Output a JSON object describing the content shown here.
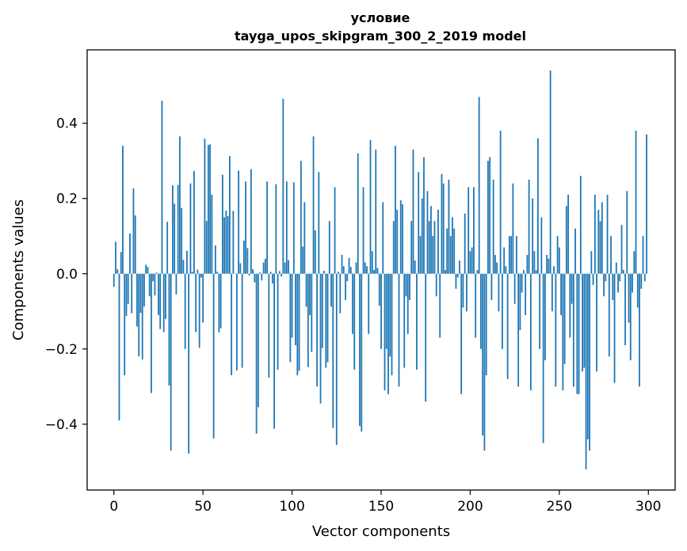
{
  "chart_data": {
    "type": "bar",
    "title": "условие",
    "subtitle": "tayga_upos_skipgram_300_2_2019 model",
    "xlabel": "Vector components",
    "ylabel": "Components values",
    "xlim": [
      -15,
      315
    ],
    "ylim": [
      -0.575,
      0.595
    ],
    "xticks": [
      0,
      50,
      100,
      150,
      200,
      250,
      300
    ],
    "xtick_labels": [
      "0",
      "50",
      "100",
      "150",
      "200",
      "250",
      "300"
    ],
    "yticks": [
      -0.4,
      -0.2,
      0.0,
      0.2,
      0.4
    ],
    "ytick_labels": [
      "−0.4",
      "−0.2",
      "0.0",
      "0.2",
      "0.4"
    ],
    "grid": false,
    "legend": "none",
    "bar_color": "#1f77b4",
    "values": [
      -0.035,
      0.085,
      0.012,
      -0.39,
      0.058,
      0.34,
      -0.27,
      -0.112,
      -0.08,
      0.107,
      -0.105,
      0.227,
      0.155,
      -0.14,
      -0.22,
      -0.104,
      -0.228,
      -0.087,
      0.024,
      0.018,
      -0.06,
      -0.317,
      -0.02,
      -0.058,
      0.003,
      -0.11,
      -0.147,
      0.46,
      -0.155,
      -0.12,
      0.138,
      -0.297,
      -0.47,
      0.235,
      0.186,
      -0.055,
      0.236,
      0.365,
      0.175,
      0.037,
      -0.2,
      0.061,
      -0.478,
      0.24,
      0.005,
      0.273,
      -0.155,
      0.011,
      -0.197,
      -0.01,
      -0.13,
      0.359,
      0.14,
      0.342,
      0.344,
      0.21,
      -0.438,
      0.075,
      0.005,
      -0.156,
      -0.145,
      0.263,
      0.15,
      0.168,
      0.153,
      0.313,
      -0.27,
      0.167,
      0.001,
      -0.257,
      0.274,
      0.028,
      -0.25,
      0.088,
      0.245,
      0.068,
      -0.005,
      0.278,
      0.012,
      -0.023,
      -0.425,
      -0.355,
      0.003,
      -0.018,
      0.03,
      0.04,
      0.245,
      -0.276,
      0.005,
      -0.026,
      -0.412,
      0.238,
      -0.255,
      0.007,
      -0.007,
      0.465,
      0.03,
      0.245,
      0.036,
      -0.235,
      -0.17,
      0.243,
      -0.19,
      -0.27,
      -0.258,
      0.3,
      0.072,
      0.19,
      -0.088,
      -0.248,
      -0.11,
      -0.208,
      0.365,
      0.115,
      -0.3,
      0.27,
      -0.345,
      -0.198,
      0.008,
      -0.25,
      -0.235,
      0.14,
      -0.088,
      -0.41,
      0.23,
      -0.455,
      0.005,
      -0.105,
      0.05,
      0.02,
      -0.07,
      -0.02,
      0.042,
      0.018,
      -0.16,
      -0.255,
      0.03,
      0.32,
      -0.405,
      -0.42,
      0.23,
      0.03,
      0.02,
      -0.16,
      0.355,
      0.06,
      0.01,
      0.33,
      0.015,
      -0.085,
      -0.2,
      0.19,
      -0.31,
      -0.2,
      -0.32,
      -0.22,
      -0.27,
      0.14,
      0.34,
      0.17,
      -0.3,
      0.195,
      0.185,
      -0.25,
      -0.06,
      -0.16,
      -0.07,
      0.14,
      0.33,
      0.035,
      -0.255,
      0.27,
      0.1,
      0.2,
      0.31,
      -0.34,
      0.22,
      0.14,
      0.18,
      0.1,
      0.14,
      -0.06,
      0.17,
      -0.17,
      0.265,
      0.24,
      0.01,
      0.12,
      0.25,
      0.1,
      0.15,
      0.12,
      -0.04,
      -0.01,
      0.035,
      -0.32,
      -0.09,
      0.16,
      -0.1,
      0.23,
      0.06,
      0.07,
      0.23,
      -0.17,
      0.01,
      0.47,
      -0.2,
      -0.43,
      -0.47,
      -0.27,
      0.3,
      0.31,
      -0.07,
      0.25,
      0.05,
      0.03,
      -0.1,
      0.38,
      -0.2,
      0.07,
      0.02,
      -0.28,
      0.1,
      0.1,
      0.24,
      -0.08,
      0.1,
      -0.3,
      -0.15,
      -0.05,
      0.01,
      -0.11,
      0.05,
      0.25,
      -0.31,
      0.2,
      0.06,
      0.01,
      0.36,
      -0.2,
      0.15,
      -0.45,
      -0.23,
      0.05,
      0.04,
      0.54,
      -0.1,
      0.02,
      -0.3,
      0.1,
      0.07,
      -0.11,
      -0.31,
      -0.24,
      0.18,
      0.21,
      -0.17,
      -0.08,
      -0.3,
      0.12,
      -0.32,
      -0.32,
      0.26,
      -0.26,
      -0.25,
      -0.52,
      -0.44,
      -0.47,
      0.06,
      -0.03,
      0.21,
      -0.26,
      0.17,
      0.14,
      0.19,
      -0.06,
      -0.02,
      0.21,
      -0.22,
      0.1,
      -0.07,
      -0.29,
      0.03,
      -0.05,
      -0.02,
      0.13,
      0.01,
      -0.19,
      0.22,
      -0.13,
      -0.23,
      -0.05,
      0.06,
      0.38,
      -0.09,
      -0.3,
      -0.04,
      0.1,
      -0.02,
      0.37
    ]
  }
}
